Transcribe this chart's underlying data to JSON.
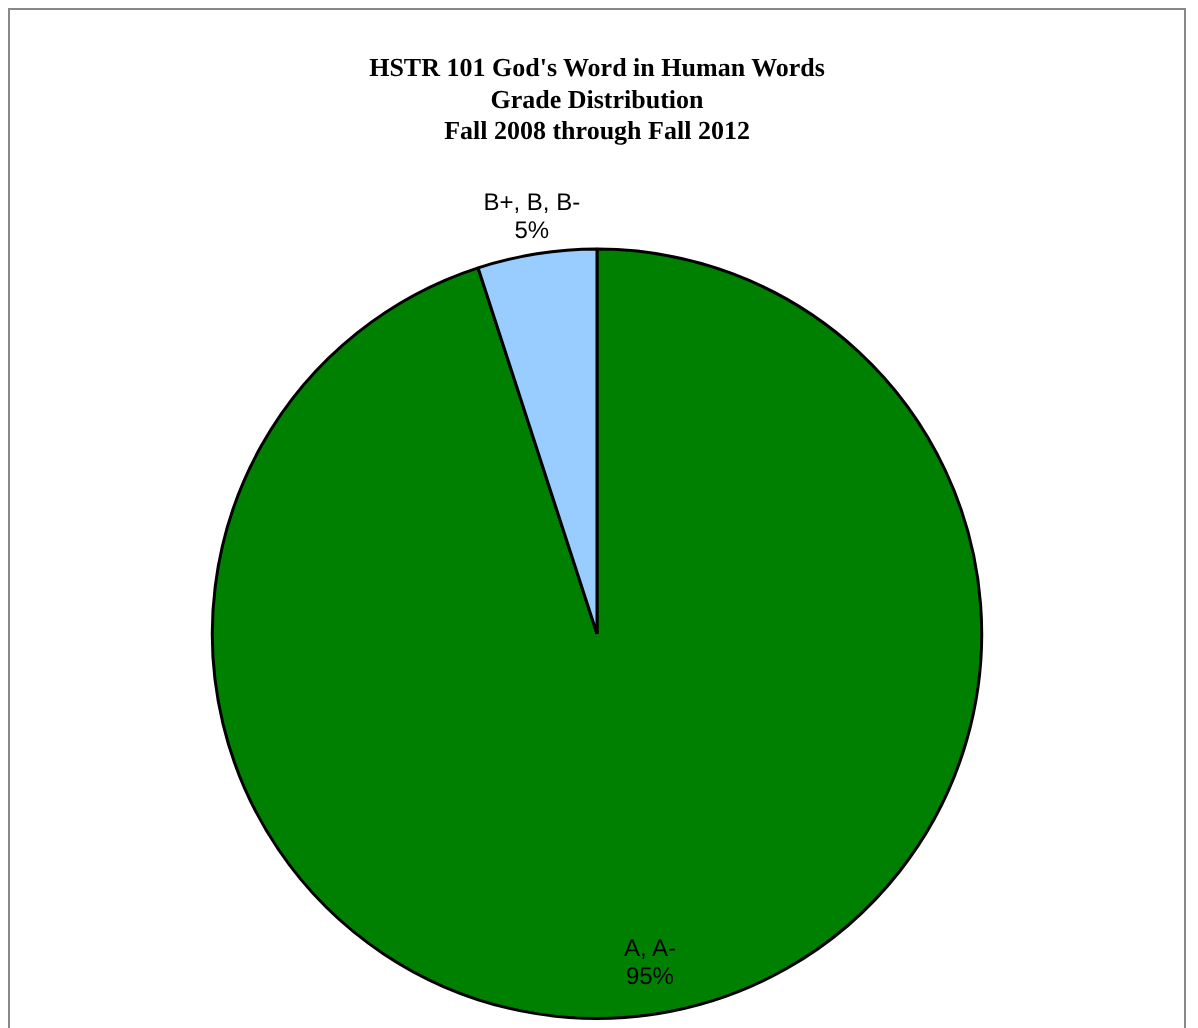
{
  "chart_data": {
    "type": "pie",
    "title": "HSTR 101 God's Word in Human Words\nGrade Distribution\nFall 2008 through Fall 2012",
    "categories": [
      "A, A-",
      "B+, B, B-"
    ],
    "values": [
      95,
      5
    ],
    "value_labels": [
      "95%",
      "5%"
    ],
    "colors": [
      "#008000",
      "#99ccff"
    ],
    "legend": false
  }
}
